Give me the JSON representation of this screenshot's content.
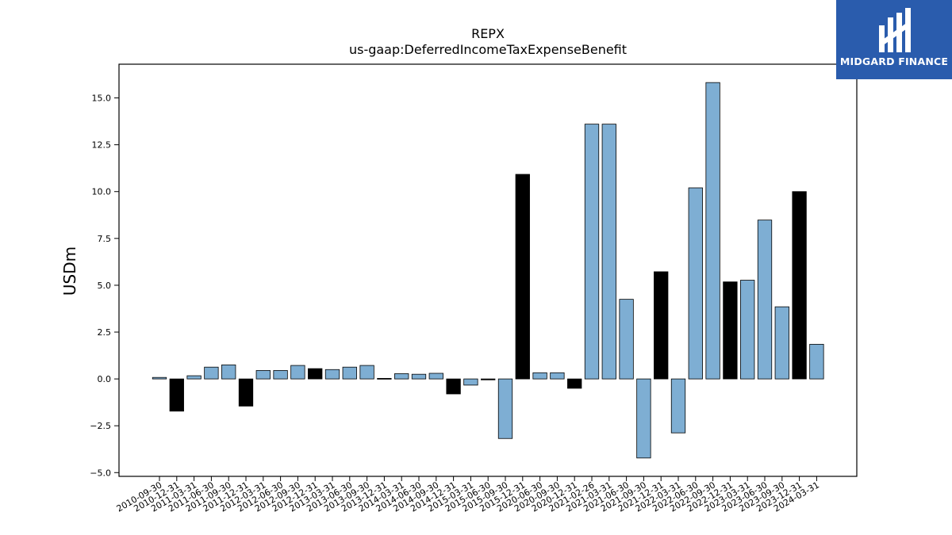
{
  "brand": {
    "name": "MIDGARD FINANCE",
    "logo_icon": "midgard-logo-icon",
    "background_color": "#2a5cad"
  },
  "chart_data": {
    "type": "bar",
    "title": "REPX",
    "subtitle": "us-gaap:DeferredIncomeTaxExpenseBenefit",
    "xlabel": "",
    "ylabel": "USDm",
    "ylim": [
      -5.2,
      16.8
    ],
    "yticks": [
      -5.0,
      -2.5,
      0.0,
      2.5,
      5.0,
      7.5,
      10.0,
      12.5,
      15.0
    ],
    "ytick_labels": [
      "−5.0",
      "−2.5",
      "0.0",
      "2.5",
      "5.0",
      "7.5",
      "10.0",
      "12.5",
      "15.0"
    ],
    "grid": false,
    "colors": {
      "standard": "#7eaed3",
      "highlight": "#000000",
      "edge": "#000000"
    },
    "categories": [
      "2010-09-30",
      "2010-12-31",
      "2011-03-31",
      "2011-06-30",
      "2011-09-30",
      "2011-12-31",
      "2012-03-31",
      "2012-06-30",
      "2012-09-30",
      "2012-12-31",
      "2013-03-31",
      "2013-06-30",
      "2013-09-30",
      "2013-12-31",
      "2014-03-31",
      "2014-06-30",
      "2014-09-30",
      "2014-12-31",
      "2015-03-31",
      "2015-06-30",
      "2015-09-30",
      "2015-12-31",
      "2020-06-30",
      "2020-09-30",
      "2020-12-31",
      "2021-02-26",
      "2021-03-31",
      "2021-06-30",
      "2021-09-30",
      "2021-12-31",
      "2022-03-31",
      "2022-06-30",
      "2022-09-30",
      "2022-12-31",
      "2023-03-31",
      "2023-06-30",
      "2023-09-30",
      "2023-12-31",
      "2024-03-31"
    ],
    "values": [
      0.08,
      -1.72,
      0.17,
      0.63,
      0.75,
      -1.45,
      0.45,
      0.45,
      0.72,
      0.55,
      0.5,
      0.63,
      0.72,
      0.03,
      0.28,
      0.25,
      0.3,
      -0.8,
      -0.33,
      -0.05,
      -3.18,
      10.92,
      0.33,
      0.33,
      -0.5,
      13.6,
      13.6,
      4.25,
      -4.22,
      5.72,
      -2.88,
      10.2,
      15.82,
      5.18,
      5.27,
      8.48,
      3.85,
      10.0,
      1.85
    ],
    "highlighted": [
      false,
      true,
      false,
      false,
      false,
      true,
      false,
      false,
      false,
      true,
      false,
      false,
      false,
      true,
      false,
      false,
      false,
      true,
      false,
      true,
      false,
      true,
      false,
      false,
      true,
      false,
      false,
      false,
      false,
      true,
      false,
      false,
      false,
      true,
      false,
      false,
      false,
      true,
      false
    ]
  }
}
